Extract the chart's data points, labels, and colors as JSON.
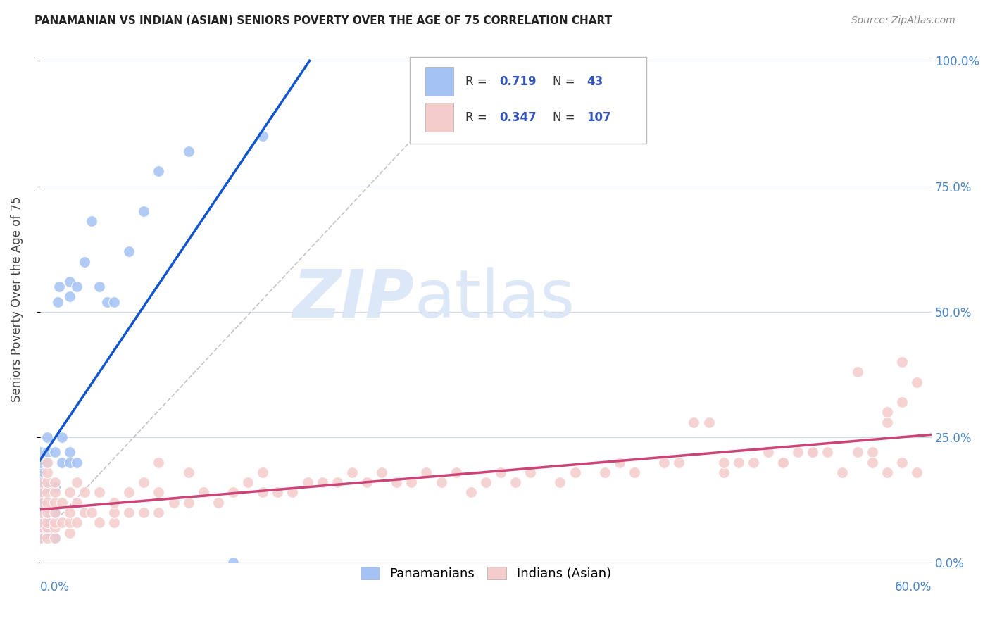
{
  "title": "PANAMANIAN VS INDIAN (ASIAN) SENIORS POVERTY OVER THE AGE OF 75 CORRELATION CHART",
  "source": "Source: ZipAtlas.com",
  "ylabel": "Seniors Poverty Over the Age of 75",
  "xlim": [
    0.0,
    0.6
  ],
  "ylim": [
    0.0,
    1.05
  ],
  "blue_color": "#a4c2f4",
  "pink_color": "#f4cccc",
  "blue_line_color": "#1155cc",
  "pink_line_color": "#cc4477",
  "background_color": "#ffffff",
  "grid_color": "#ccd9f0",
  "pan_x": [
    0.0,
    0.0,
    0.0,
    0.0,
    0.0,
    0.0,
    0.0,
    0.0,
    0.0,
    0.0,
    0.0,
    0.005,
    0.005,
    0.005,
    0.005,
    0.005,
    0.005,
    0.005,
    0.01,
    0.01,
    0.01,
    0.01,
    0.012,
    0.013,
    0.015,
    0.015,
    0.02,
    0.02,
    0.02,
    0.02,
    0.025,
    0.025,
    0.03,
    0.035,
    0.04,
    0.045,
    0.05,
    0.06,
    0.07,
    0.08,
    0.1,
    0.13,
    0.15
  ],
  "pan_y": [
    0.05,
    0.06,
    0.07,
    0.08,
    0.1,
    0.12,
    0.14,
    0.16,
    0.18,
    0.2,
    0.22,
    0.06,
    0.08,
    0.1,
    0.15,
    0.2,
    0.22,
    0.25,
    0.05,
    0.1,
    0.15,
    0.22,
    0.52,
    0.55,
    0.2,
    0.25,
    0.53,
    0.56,
    0.2,
    0.22,
    0.55,
    0.2,
    0.6,
    0.68,
    0.55,
    0.52,
    0.52,
    0.62,
    0.7,
    0.78,
    0.82,
    0.0,
    0.85
  ],
  "ind_x": [
    0.0,
    0.0,
    0.0,
    0.0,
    0.0,
    0.0,
    0.0,
    0.005,
    0.005,
    0.005,
    0.005,
    0.005,
    0.005,
    0.005,
    0.005,
    0.005,
    0.01,
    0.01,
    0.01,
    0.01,
    0.01,
    0.01,
    0.01,
    0.015,
    0.015,
    0.02,
    0.02,
    0.02,
    0.02,
    0.025,
    0.025,
    0.025,
    0.03,
    0.03,
    0.035,
    0.04,
    0.04,
    0.05,
    0.05,
    0.05,
    0.06,
    0.06,
    0.07,
    0.07,
    0.08,
    0.08,
    0.08,
    0.09,
    0.1,
    0.1,
    0.11,
    0.12,
    0.13,
    0.14,
    0.15,
    0.15,
    0.16,
    0.17,
    0.18,
    0.19,
    0.2,
    0.21,
    0.22,
    0.23,
    0.24,
    0.25,
    0.26,
    0.27,
    0.28,
    0.29,
    0.3,
    0.31,
    0.32,
    0.33,
    0.35,
    0.36,
    0.38,
    0.39,
    0.4,
    0.42,
    0.43,
    0.45,
    0.46,
    0.47,
    0.48,
    0.49,
    0.5,
    0.51,
    0.52,
    0.53,
    0.55,
    0.56,
    0.57,
    0.58,
    0.59,
    0.44,
    0.46,
    0.5,
    0.52,
    0.54,
    0.56,
    0.57,
    0.58,
    0.59,
    0.55,
    0.57,
    0.58
  ],
  "ind_y": [
    0.05,
    0.07,
    0.08,
    0.1,
    0.12,
    0.14,
    0.16,
    0.05,
    0.07,
    0.08,
    0.1,
    0.12,
    0.14,
    0.16,
    0.18,
    0.2,
    0.05,
    0.07,
    0.08,
    0.1,
    0.12,
    0.14,
    0.16,
    0.08,
    0.12,
    0.06,
    0.08,
    0.1,
    0.14,
    0.08,
    0.12,
    0.16,
    0.1,
    0.14,
    0.1,
    0.08,
    0.14,
    0.08,
    0.1,
    0.12,
    0.1,
    0.14,
    0.1,
    0.16,
    0.1,
    0.14,
    0.2,
    0.12,
    0.12,
    0.18,
    0.14,
    0.12,
    0.14,
    0.16,
    0.14,
    0.18,
    0.14,
    0.14,
    0.16,
    0.16,
    0.16,
    0.18,
    0.16,
    0.18,
    0.16,
    0.16,
    0.18,
    0.16,
    0.18,
    0.14,
    0.16,
    0.18,
    0.16,
    0.18,
    0.16,
    0.18,
    0.18,
    0.2,
    0.18,
    0.2,
    0.2,
    0.28,
    0.18,
    0.2,
    0.2,
    0.22,
    0.2,
    0.22,
    0.22,
    0.22,
    0.22,
    0.22,
    0.28,
    0.32,
    0.36,
    0.28,
    0.2,
    0.2,
    0.22,
    0.18,
    0.2,
    0.18,
    0.2,
    0.18,
    0.38,
    0.3,
    0.4
  ]
}
